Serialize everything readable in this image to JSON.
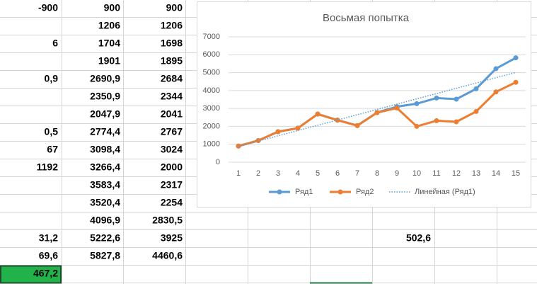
{
  "table": {
    "rows": [
      [
        "-900",
        "900",
        "900"
      ],
      [
        null,
        "1206",
        "1206"
      ],
      [
        "6",
        "1704",
        "1698"
      ],
      [
        null,
        "1901",
        "1895"
      ],
      [
        "0,9",
        "2690,9",
        "2684"
      ],
      [
        null,
        "2350,9",
        "2344"
      ],
      [
        null,
        "2047,9",
        "2041"
      ],
      [
        "0,5",
        "2774,4",
        "2767"
      ],
      [
        "67",
        "3098,4",
        "3024"
      ],
      [
        "1192",
        "3266,4",
        "2000"
      ],
      [
        null,
        "3583,4",
        "2317"
      ],
      [
        null,
        "3520,4",
        "2254"
      ],
      [
        null,
        "4096,9",
        "2830,5"
      ],
      [
        "31,2",
        "5222,6",
        "3925"
      ],
      [
        "69,6",
        "5827,8",
        "4460,6"
      ],
      [
        "467,2",
        null,
        null
      ]
    ],
    "extra_value": "502,6"
  },
  "chart_data": {
    "type": "line",
    "title": "Восьмая попытка",
    "categories": [
      1,
      2,
      3,
      4,
      5,
      6,
      7,
      8,
      9,
      10,
      11,
      12,
      13,
      14,
      15
    ],
    "series": [
      {
        "name": "Ряд1",
        "color": "#5b9bd5",
        "values": [
          900,
          1206,
          1704,
          1901,
          2690.9,
          2350.9,
          2047.9,
          2774.4,
          3098.4,
          3266.4,
          3583.4,
          3520.4,
          4096.9,
          5222.6,
          5827.8
        ]
      },
      {
        "name": "Ряд2",
        "color": "#ed7d31",
        "values": [
          900,
          1206,
          1698,
          1895,
          2684,
          2344,
          2041,
          2767,
          3024,
          2000,
          2317,
          2254,
          2830.5,
          3925,
          4460.6
        ]
      }
    ],
    "trendline": {
      "name": "Линейная (Ряд1)",
      "series": 0,
      "color": "#5b9bd5"
    },
    "ylim": [
      0,
      7000
    ],
    "yticks": [
      0,
      1000,
      2000,
      3000,
      4000,
      5000,
      6000,
      7000
    ],
    "grid": true,
    "legend": "bottom"
  }
}
